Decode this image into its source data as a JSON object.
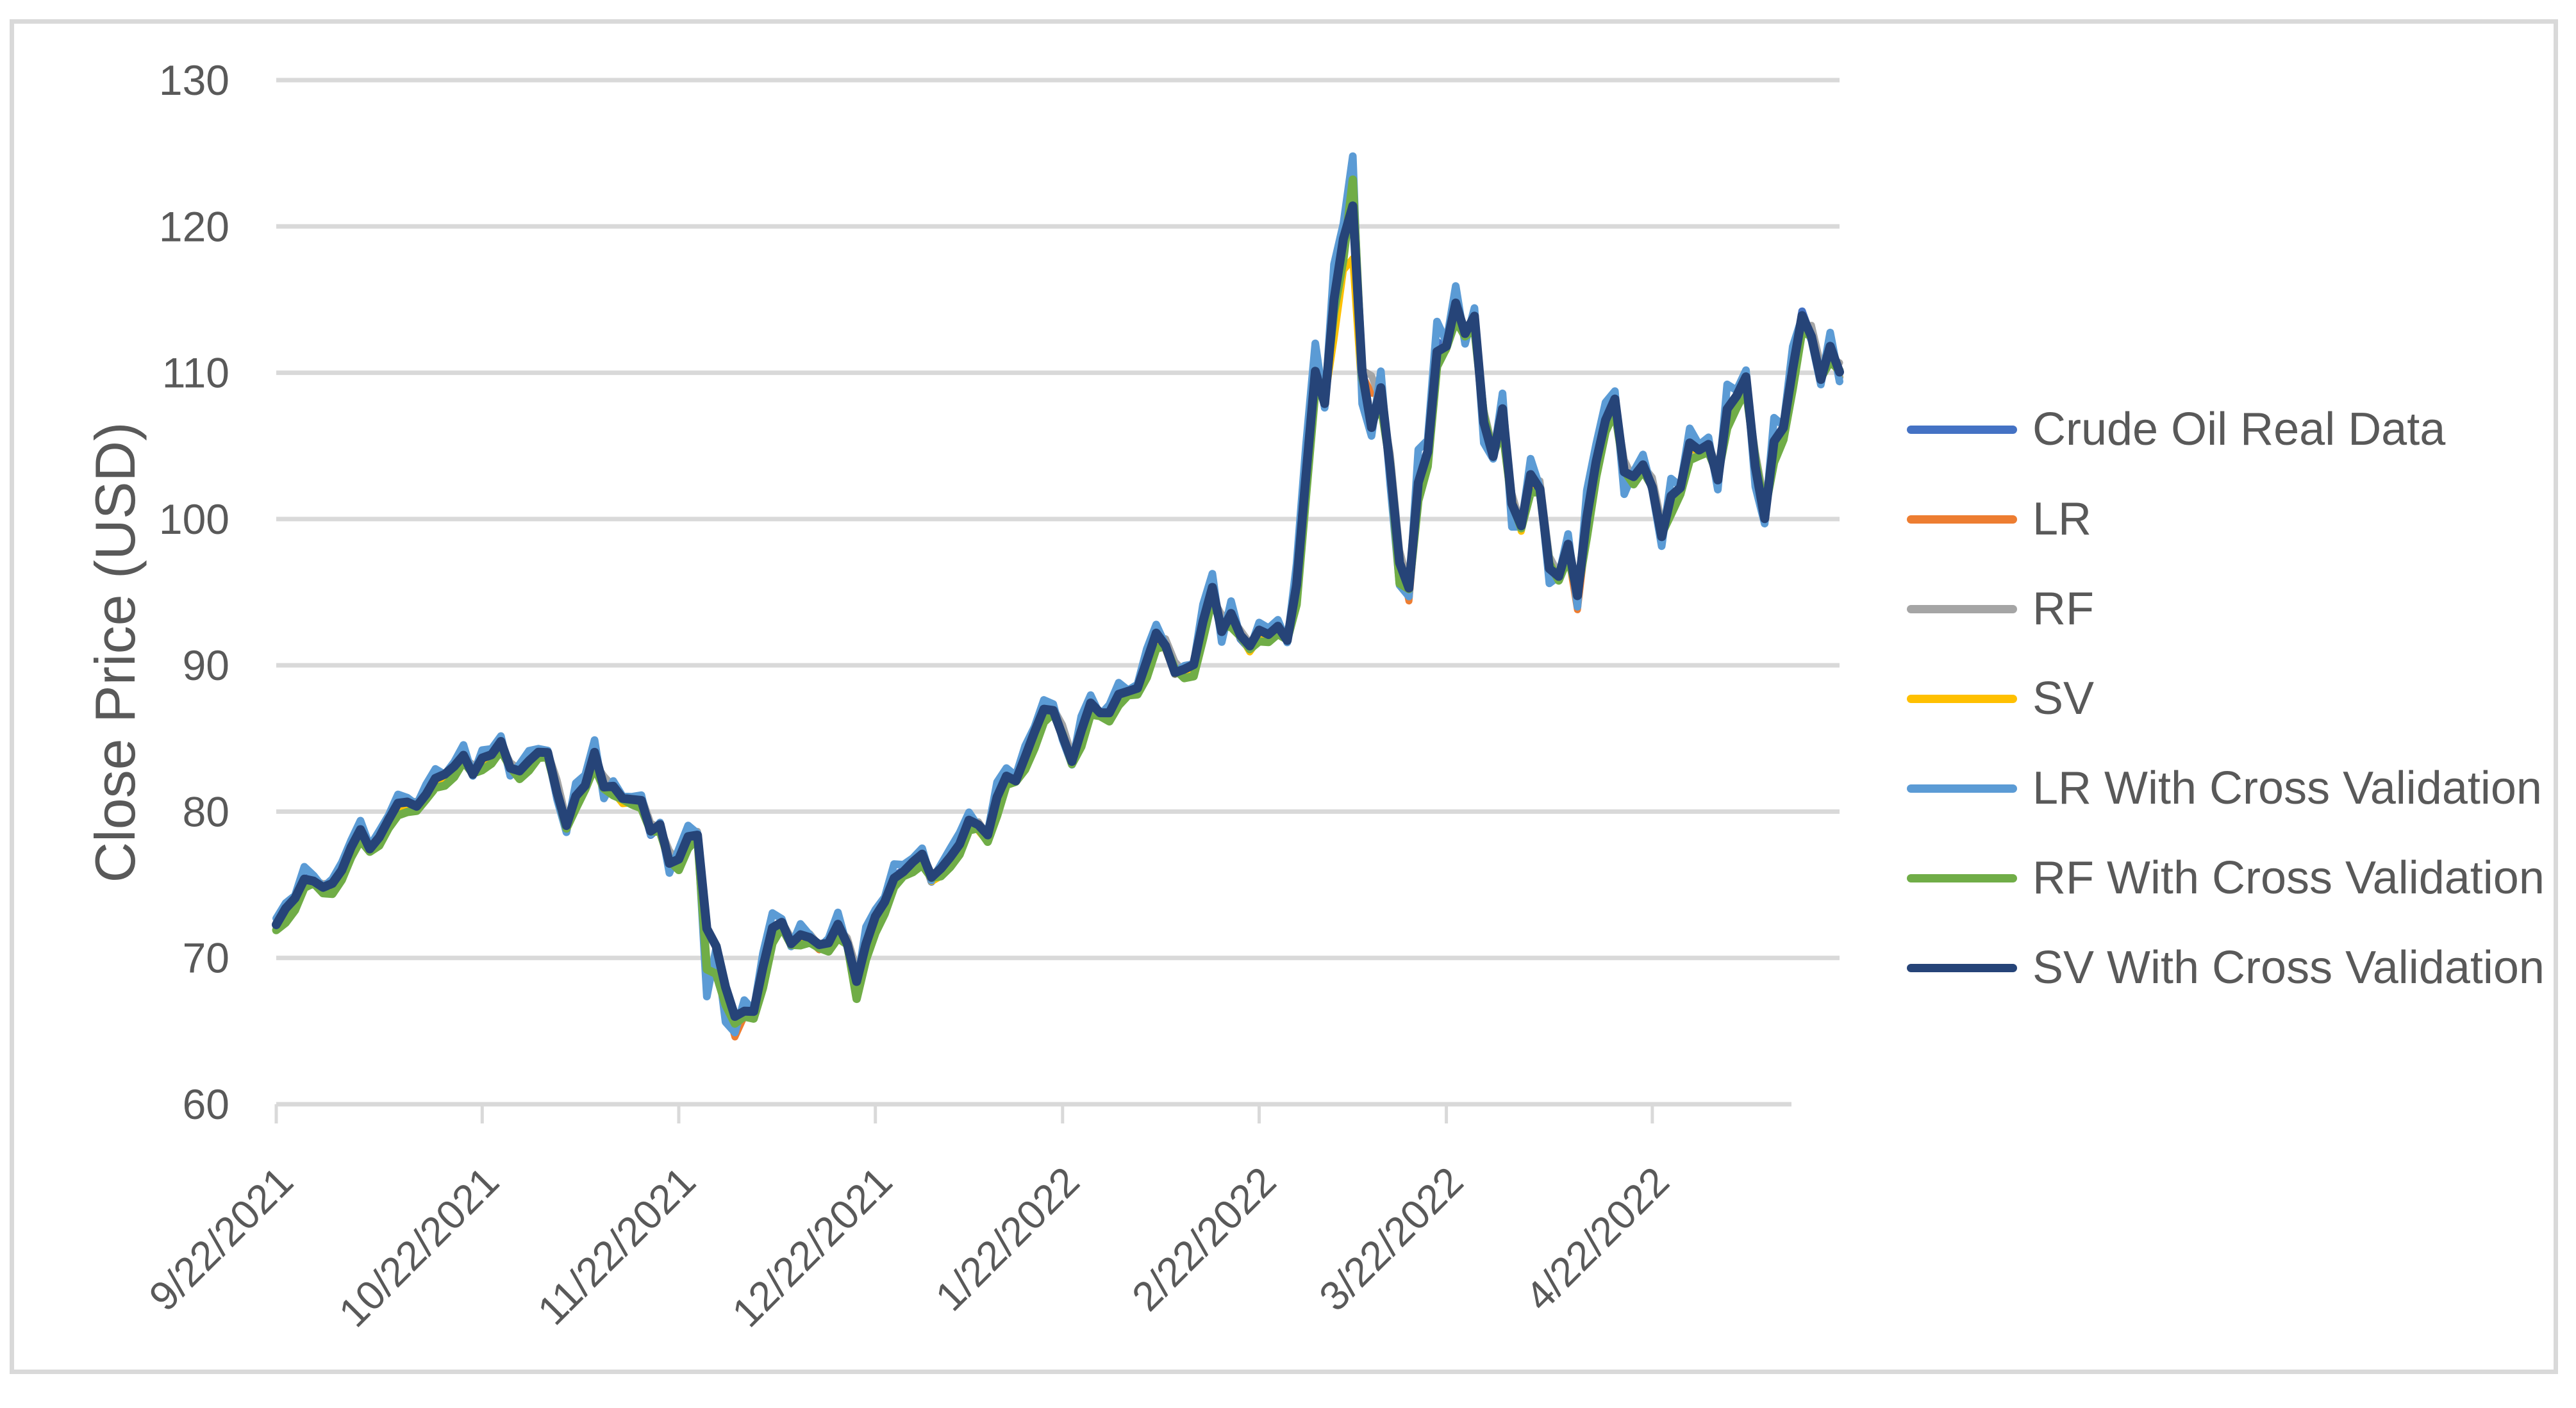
{
  "chart_data": {
    "type": "line",
    "title": "",
    "xlabel": "",
    "ylabel": "Close Price (USD)",
    "ylim": [
      60,
      130
    ],
    "yticks": [
      60,
      70,
      80,
      90,
      100,
      110,
      120,
      130
    ],
    "xtick_labels": [
      "9/22/2021",
      "10/22/2021",
      "11/22/2021",
      "12/22/2021",
      "1/22/2022",
      "2/22/2022",
      "3/22/2022",
      "4/22/2022"
    ],
    "xtick_indices": [
      0,
      22,
      43,
      64,
      84,
      105,
      125,
      147
    ],
    "x_description": "consecutive daily trading observations from 9/22/2021 through mid-May 2022, 168 points, one point per trading day",
    "n_points": 168,
    "grid": "horizontal",
    "grid_color": "#D9D9D9",
    "axis_color": "#D9D9D9",
    "text_color": "#595959",
    "legend_position": "right",
    "overlap_note": "All six model prediction series visually overlap the real data line within about +/-1.5 USD except at the early-March spike; prediction series are encoded as the real series plus bias/lag/override deviations read from the visible colored fringes.",
    "series": [
      {
        "name": "Crude Oil Real Data",
        "color": "#4472C4",
        "width": 12,
        "values": [
          72.2,
          73.3,
          74.0,
          75.5,
          75.3,
          74.8,
          75.0,
          75.9,
          77.6,
          78.9,
          77.4,
          78.3,
          79.4,
          80.5,
          80.6,
          80.4,
          81.3,
          82.3,
          82.4,
          83.0,
          83.9,
          82.5,
          83.8,
          83.8,
          84.7,
          82.7,
          82.8,
          83.6,
          84.1,
          83.9,
          80.9,
          78.8,
          81.3,
          81.9,
          84.2,
          81.3,
          81.6,
          80.8,
          80.9,
          80.8,
          78.4,
          79.0,
          76.1,
          76.8,
          78.5,
          78.4,
          68.2,
          70.0,
          66.2,
          65.6,
          66.5,
          66.3,
          69.5,
          72.1,
          72.4,
          70.9,
          71.7,
          71.3,
          70.7,
          70.9,
          72.4,
          70.9,
          68.2,
          71.1,
          72.8,
          73.8,
          75.6,
          76.0,
          76.6,
          77.0,
          75.2,
          76.1,
          77.0,
          77.9,
          79.5,
          78.9,
          78.2,
          81.2,
          82.6,
          82.1,
          83.8,
          85.4,
          87.0,
          86.9,
          85.1,
          83.3,
          85.6,
          87.4,
          86.6,
          86.8,
          88.2,
          88.2,
          88.3,
          90.3,
          92.3,
          91.3,
          89.4,
          89.7,
          89.9,
          93.1,
          95.5,
          92.1,
          93.7,
          91.8,
          91.1,
          92.4,
          92.1,
          92.8,
          91.6,
          95.7,
          103.4,
          110.6,
          107.7,
          115.7,
          119.4,
          123.7,
          108.7,
          106.0,
          109.3,
          103.0,
          96.4,
          95.0,
          103.0,
          104.7,
          112.1,
          111.8,
          114.9,
          112.3,
          113.9,
          106.0,
          104.2,
          107.8,
          100.3,
          99.3,
          103.3,
          102.0,
          96.2,
          96.0,
          98.3,
          94.3,
          100.6,
          104.3,
          107.0,
          108.2,
          102.6,
          102.8,
          103.8,
          102.1,
          98.5,
          101.7,
          102.0,
          105.4,
          104.7,
          105.2,
          102.4,
          107.8,
          108.3,
          109.8,
          103.1,
          99.8,
          105.7,
          106.1,
          110.5,
          114.2,
          112.4,
          109.3,
          111.9,
          109.7
        ]
      },
      {
        "name": "LR",
        "color": "#ED7D31",
        "width": 11,
        "tracks": "Crude Oil Real Data",
        "bias": -0.15,
        "lag": 0.22,
        "jig": [
          0.15,
          1.7,
          0.9
        ],
        "overrides": {
          "46": 68.0,
          "49": 64.6,
          "62": 67.4,
          "115": 121.8,
          "117": 108.6,
          "121": 94.4,
          "139": 93.8
        }
      },
      {
        "name": "RF",
        "color": "#A5A5A5",
        "width": 11,
        "tracks": "Crude Oil Real Data",
        "bias": 0.1,
        "lag": 0.35,
        "jig": [
          0.15,
          2.1,
          2.0
        ],
        "overrides": {
          "115": 122.5,
          "117": 109.8
        }
      },
      {
        "name": "SV",
        "color": "#FFC000",
        "width": 11,
        "tracks": "Crude Oil Real Data",
        "bias": -0.2,
        "lag": 0.15,
        "jig": [
          0.18,
          1.3,
          0.4
        ],
        "overrides": {
          "62": 67.6,
          "113": 112.3,
          "114": 117.0,
          "115": 117.8,
          "116": 108.3
        }
      },
      {
        "name": "LR With Cross Validation",
        "color": "#5B9BD5",
        "width": 12,
        "tracks": "Crude Oil Real Data",
        "bias": 0.3,
        "lag": -0.18,
        "jig": [
          0.2,
          1.9,
          1.5
        ],
        "overrides": {
          "49": 64.9,
          "115": 124.8,
          "121": 94.7,
          "139": 94.0,
          "163": 113.8
        }
      },
      {
        "name": "RF With Cross Validation",
        "color": "#70AD47",
        "width": 13,
        "tracks": "Crude Oil Real Data",
        "bias": -0.4,
        "lag": 0.3,
        "jig": [
          0.2,
          1.5,
          2.6
        ],
        "overrides": {
          "62": 67.2,
          "115": 123.2,
          "120": 95.6
        }
      },
      {
        "name": "SV With Cross Validation",
        "color": "#264478",
        "width": 14,
        "tracks": "Crude Oil Real Data",
        "bias": 0.05,
        "lag": 0.08,
        "jig": [
          0.12,
          1.1,
          0.2
        ],
        "overrides": {
          "46": 72.0,
          "47": 70.8,
          "48": 68.0,
          "49": 66.0,
          "115": 121.4
        }
      }
    ]
  },
  "legend": {
    "items": [
      "Crude Oil Real Data",
      "LR",
      "RF",
      "SV",
      "LR With Cross Validation",
      "RF With Cross Validation",
      "SV With Cross Validation"
    ]
  },
  "frame": {
    "border_color": "#D9D9D9",
    "background": "#FFFFFF"
  }
}
